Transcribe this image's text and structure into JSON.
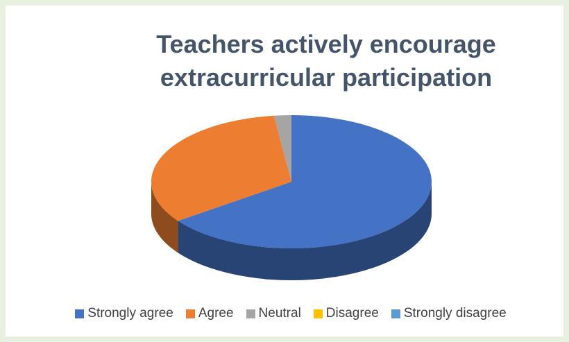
{
  "chart_data": {
    "type": "pie",
    "title": "Teachers actively encourage extracurricular participation",
    "categories": [
      "Strongly agree",
      "Agree",
      "Neutral",
      "Disagree",
      "Strongly disagree"
    ],
    "values": [
      65,
      33,
      2,
      0,
      0
    ],
    "colors": [
      "#4472c4",
      "#ed7d31",
      "#a5a5a5",
      "#ffc000",
      "#5b9bd5"
    ],
    "legend": "bottom"
  }
}
